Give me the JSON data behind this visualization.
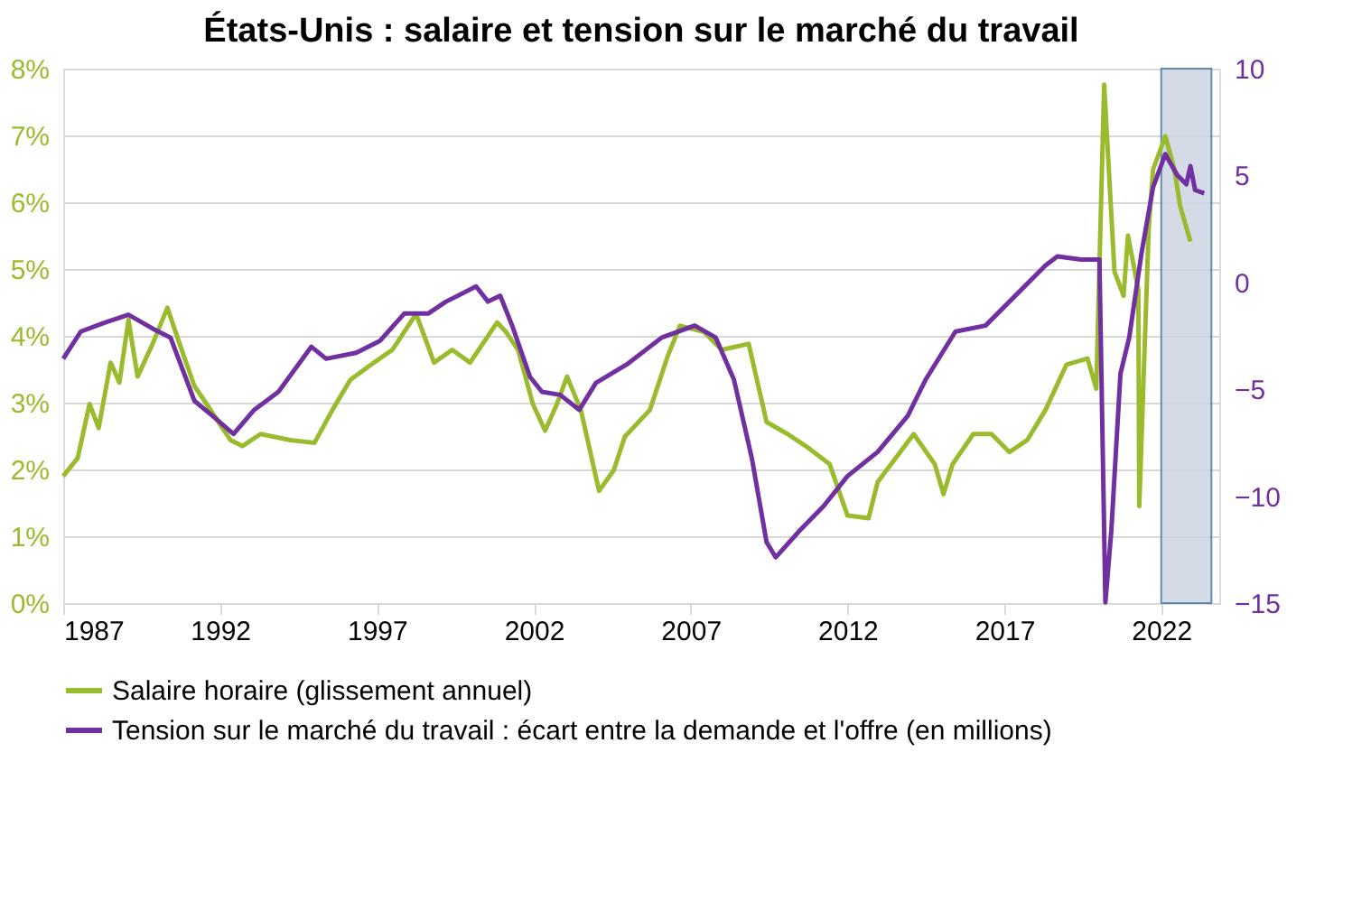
{
  "chart_data": {
    "type": "line",
    "title": "États-Unis : salaire et tension sur le marché du travail",
    "xlim": [
      1987,
      2023.85
    ],
    "xticks": [
      1987,
      1992,
      1997,
      2002,
      2007,
      2012,
      2017,
      2022
    ],
    "ylim": [
      0,
      0.08
    ],
    "yticks": [
      {
        "value": 0,
        "label": "0%"
      },
      {
        "value": 0.01,
        "label": "1%"
      },
      {
        "value": 0.02,
        "label": "2%"
      },
      {
        "value": 0.03,
        "label": "3%"
      },
      {
        "value": 0.04,
        "label": "4%"
      },
      {
        "value": 0.05,
        "label": "5%"
      },
      {
        "value": 0.06,
        "label": "6%"
      },
      {
        "value": 0.07,
        "label": "7%"
      },
      {
        "value": 0.08,
        "label": "8%"
      }
    ],
    "y2lim": [
      -15,
      10
    ],
    "y2ticks": [
      -15,
      -10,
      -5,
      0,
      5,
      10
    ],
    "grid": "y",
    "legend": "bottom",
    "marker": "none",
    "line_style": "solid",
    "bands": [
      {
        "axis": "x",
        "from": 2022.0,
        "to": 2023.6,
        "color": "#c9d3e2"
      }
    ],
    "series": [
      {
        "name": "Salaire horaire (glissement annuel)",
        "color": "#9bbb2f",
        "x": [
          1987.0,
          1987.46,
          1987.84,
          1988.13,
          1988.51,
          1988.79,
          1989.08,
          1989.37,
          1989.85,
          1990.32,
          1990.71,
          1991.18,
          1991.57,
          1992.33,
          1992.71,
          1993.29,
          1994.24,
          1995.01,
          1995.58,
          1996.15,
          1996.91,
          1997.49,
          1998.25,
          1998.82,
          1999.4,
          1999.97,
          2000.83,
          2001.11,
          2001.5,
          2001.97,
          2002.36,
          2002.74,
          2003.06,
          2003.5,
          2004.08,
          2004.55,
          2004.9,
          2005.7,
          2006.27,
          2006.66,
          2007.42,
          2007.99,
          2008.85,
          2009.42,
          2010.09,
          2010.67,
          2011.43,
          2012.0,
          2012.67,
          2012.96,
          2014.11,
          2014.78,
          2015.06,
          2015.35,
          2016.01,
          2016.59,
          2017.16,
          2017.73,
          2018.31,
          2018.98,
          2019.65,
          2019.93,
          2020.18,
          2020.51,
          2020.8,
          2020.94,
          2021.27,
          2021.3,
          2021.6,
          2021.74,
          2022.13,
          2022.42,
          2022.6,
          2022.93
        ],
        "values": [
          0.019,
          0.0217,
          0.0298,
          0.0262,
          0.036,
          0.033,
          0.0424,
          0.0339,
          0.0388,
          0.0442,
          0.0388,
          0.0325,
          0.0298,
          0.0244,
          0.0235,
          0.0253,
          0.0244,
          0.024,
          0.0289,
          0.0334,
          0.036,
          0.0379,
          0.0433,
          0.036,
          0.0379,
          0.036,
          0.042,
          0.0406,
          0.0379,
          0.0298,
          0.0258,
          0.0298,
          0.0339,
          0.0289,
          0.0168,
          0.0199,
          0.0249,
          0.0289,
          0.037,
          0.0415,
          0.0406,
          0.0379,
          0.0388,
          0.0271,
          0.0253,
          0.0235,
          0.0208,
          0.0131,
          0.0127,
          0.0181,
          0.0253,
          0.0208,
          0.0163,
          0.0208,
          0.0253,
          0.0253,
          0.0226,
          0.0244,
          0.0289,
          0.0357,
          0.0366,
          0.0321,
          0.0776,
          0.0496,
          0.046,
          0.055,
          0.0469,
          0.0145,
          0.056,
          0.0649,
          0.0699,
          0.0649,
          0.0595,
          0.0541
        ]
      },
      {
        "name": "Tension sur le marché du travail : écart entre la demande et l'offre (en millions)",
        "color": "#7030a0",
        "axis": "y2",
        "x": [
          1987.0,
          1987.56,
          1988.32,
          1989.08,
          1989.85,
          1990.42,
          1991.18,
          1991.76,
          1992.43,
          1993.09,
          1993.86,
          1994.91,
          1995.38,
          1996.34,
          1997.1,
          1997.87,
          1998.63,
          1999.2,
          2000.16,
          2000.54,
          2000.93,
          2001.31,
          2001.88,
          2002.26,
          2002.84,
          2003.45,
          2003.98,
          2005.0,
          2006.08,
          2007.13,
          2007.8,
          2008.38,
          2008.95,
          2009.42,
          2009.71,
          2010.48,
          2011.24,
          2012.0,
          2012.96,
          2013.92,
          2014.49,
          2015.44,
          2016.4,
          2017.16,
          2018.31,
          2018.69,
          2019.45,
          2020.03,
          2020.22,
          2020.41,
          2020.7,
          2020.98,
          2021.37,
          2021.74,
          2022.13,
          2022.51,
          2022.8,
          2022.93,
          2023.08,
          2023.37
        ],
        "values": [
          -3.57,
          -2.3,
          -1.88,
          -1.51,
          -2.16,
          -2.58,
          -5.54,
          -6.24,
          -7.09,
          -5.96,
          -5.12,
          -3.01,
          -3.57,
          -3.29,
          -2.73,
          -1.46,
          -1.46,
          -0.9,
          -0.19,
          -0.9,
          -0.62,
          -2.02,
          -4.42,
          -5.12,
          -5.26,
          -5.96,
          -4.7,
          -3.8,
          -2.58,
          -2.02,
          -2.58,
          -4.55,
          -8.22,
          -12.15,
          -12.86,
          -11.6,
          -10.46,
          -9.06,
          -7.93,
          -6.24,
          -4.55,
          -2.3,
          -2.02,
          -0.9,
          0.79,
          1.22,
          1.07,
          1.07,
          -14.97,
          -11.6,
          -4.27,
          -2.58,
          1.36,
          4.45,
          6.0,
          5.02,
          4.59,
          5.44,
          4.32,
          4.17
        ]
      }
    ]
  }
}
